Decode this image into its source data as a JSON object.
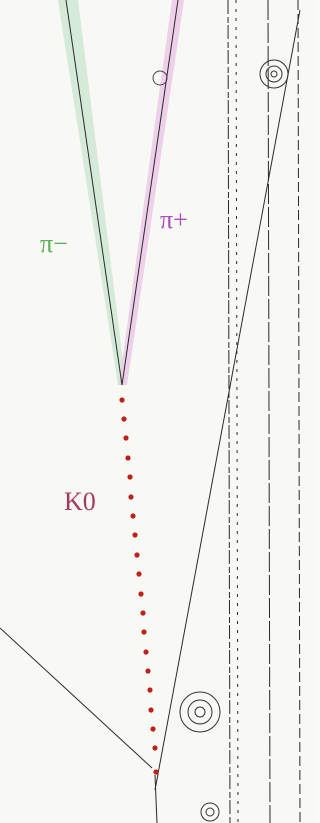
{
  "labels": {
    "pi_minus": "π−",
    "pi_plus": "π+",
    "k0": "K0"
  }
}
